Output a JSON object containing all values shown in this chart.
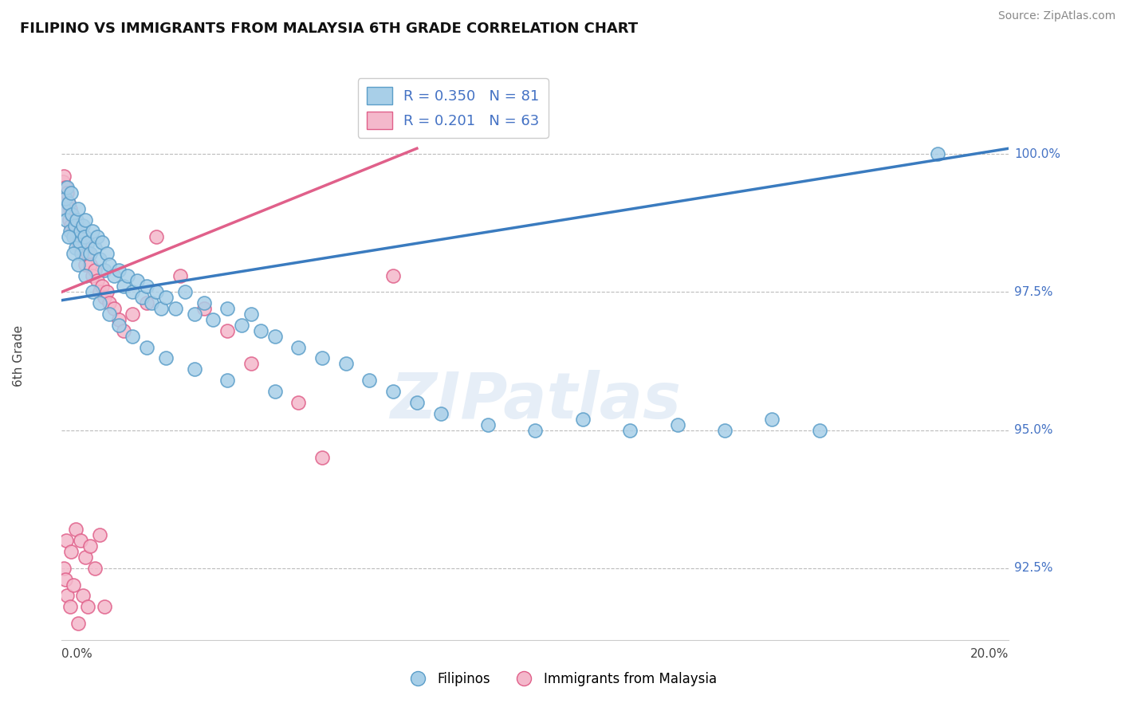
{
  "title": "FILIPINO VS IMMIGRANTS FROM MALAYSIA 6TH GRADE CORRELATION CHART",
  "source_text": "Source: ZipAtlas.com",
  "ylabel": "6th Grade",
  "watermark": "ZIPatlas",
  "x_min": 0.0,
  "x_max": 20.0,
  "y_min": 91.2,
  "y_max": 101.5,
  "yticks": [
    92.5,
    95.0,
    97.5,
    100.0
  ],
  "ytick_labels": [
    "92.5%",
    "95.0%",
    "97.5%",
    "100.0%"
  ],
  "blue_color": "#a8cfe8",
  "pink_color": "#f4b8cb",
  "blue_edge": "#5b9ec9",
  "pink_edge": "#e0608a",
  "blue_line_color": "#3a7bbf",
  "pink_line_color": "#e0608a",
  "legend_blue_label": "Filipinos",
  "legend_pink_label": "Immigrants from Malaysia",
  "R_blue": 0.35,
  "N_blue": 81,
  "R_pink": 0.201,
  "N_pink": 63,
  "blue_scatter_x": [
    0.05,
    0.08,
    0.1,
    0.12,
    0.15,
    0.18,
    0.2,
    0.22,
    0.25,
    0.28,
    0.3,
    0.32,
    0.35,
    0.38,
    0.4,
    0.42,
    0.45,
    0.48,
    0.5,
    0.55,
    0.6,
    0.65,
    0.7,
    0.75,
    0.8,
    0.85,
    0.9,
    0.95,
    1.0,
    1.1,
    1.2,
    1.3,
    1.4,
    1.5,
    1.6,
    1.7,
    1.8,
    1.9,
    2.0,
    2.1,
    2.2,
    2.4,
    2.6,
    2.8,
    3.0,
    3.2,
    3.5,
    3.8,
    4.0,
    4.2,
    4.5,
    5.0,
    5.5,
    6.0,
    6.5,
    7.0,
    7.5,
    8.0,
    9.0,
    10.0,
    11.0,
    12.0,
    13.0,
    14.0,
    15.0,
    16.0,
    18.5,
    0.15,
    0.25,
    0.35,
    0.5,
    0.65,
    0.8,
    1.0,
    1.2,
    1.5,
    1.8,
    2.2,
    2.8,
    3.5,
    4.5
  ],
  "blue_scatter_y": [
    99.0,
    99.2,
    98.8,
    99.4,
    99.1,
    98.6,
    99.3,
    98.9,
    98.5,
    98.7,
    98.3,
    98.8,
    99.0,
    98.4,
    98.6,
    98.2,
    98.7,
    98.5,
    98.8,
    98.4,
    98.2,
    98.6,
    98.3,
    98.5,
    98.1,
    98.4,
    97.9,
    98.2,
    98.0,
    97.8,
    97.9,
    97.6,
    97.8,
    97.5,
    97.7,
    97.4,
    97.6,
    97.3,
    97.5,
    97.2,
    97.4,
    97.2,
    97.5,
    97.1,
    97.3,
    97.0,
    97.2,
    96.9,
    97.1,
    96.8,
    96.7,
    96.5,
    96.3,
    96.2,
    95.9,
    95.7,
    95.5,
    95.3,
    95.1,
    95.0,
    95.2,
    95.0,
    95.1,
    95.0,
    95.2,
    95.0,
    100.0,
    98.5,
    98.2,
    98.0,
    97.8,
    97.5,
    97.3,
    97.1,
    96.9,
    96.7,
    96.5,
    96.3,
    96.1,
    95.9,
    95.7
  ],
  "pink_scatter_x": [
    0.02,
    0.04,
    0.05,
    0.06,
    0.08,
    0.1,
    0.12,
    0.14,
    0.16,
    0.18,
    0.2,
    0.22,
    0.25,
    0.28,
    0.3,
    0.32,
    0.35,
    0.38,
    0.4,
    0.42,
    0.45,
    0.48,
    0.5,
    0.55,
    0.6,
    0.65,
    0.7,
    0.75,
    0.8,
    0.85,
    0.9,
    0.95,
    1.0,
    1.1,
    1.2,
    1.3,
    1.5,
    1.8,
    2.0,
    2.5,
    3.0,
    3.5,
    4.0,
    5.0,
    5.5,
    7.0,
    0.05,
    0.08,
    0.12,
    0.18,
    0.25,
    0.35,
    0.45,
    0.55,
    0.7,
    0.9,
    0.1,
    0.2,
    0.3,
    0.4,
    0.5,
    0.6,
    0.8
  ],
  "pink_scatter_y": [
    99.5,
    99.3,
    99.6,
    99.2,
    99.4,
    99.0,
    99.3,
    99.1,
    98.8,
    99.0,
    98.7,
    98.9,
    98.6,
    98.8,
    98.5,
    98.7,
    98.4,
    98.6,
    98.3,
    98.5,
    98.2,
    98.4,
    98.0,
    98.2,
    98.0,
    97.8,
    97.9,
    97.7,
    97.5,
    97.6,
    97.4,
    97.5,
    97.3,
    97.2,
    97.0,
    96.8,
    97.1,
    97.3,
    98.5,
    97.8,
    97.2,
    96.8,
    96.2,
    95.5,
    94.5,
    97.8,
    92.5,
    92.3,
    92.0,
    91.8,
    92.2,
    91.5,
    92.0,
    91.8,
    92.5,
    91.8,
    93.0,
    92.8,
    93.2,
    93.0,
    92.7,
    92.9,
    93.1
  ],
  "blue_trend_x0": 0.0,
  "blue_trend_y0": 97.35,
  "blue_trend_x1": 20.0,
  "blue_trend_y1": 100.1,
  "pink_trend_x0": 0.0,
  "pink_trend_y0": 97.5,
  "pink_trend_x1": 7.5,
  "pink_trend_y1": 100.1
}
